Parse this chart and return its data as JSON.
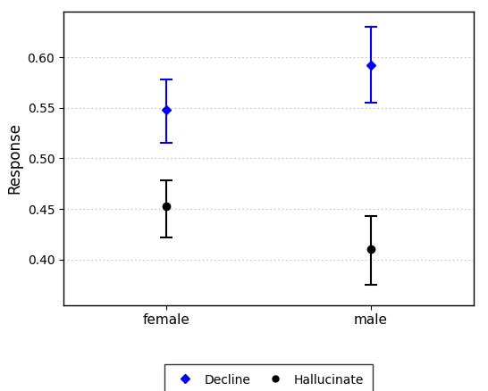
{
  "categories": [
    "female",
    "male"
  ],
  "series": [
    {
      "name": "Decline",
      "color": "#0000ee",
      "marker": "D",
      "markersize": 5,
      "y": [
        0.548,
        0.592
      ],
      "yerr_low": [
        0.033,
        0.037
      ],
      "yerr_high": [
        0.03,
        0.038
      ]
    },
    {
      "name": "Hallucinate",
      "color": "#000000",
      "marker": "o",
      "markersize": 6,
      "y": [
        0.453,
        0.41
      ],
      "yerr_low": [
        0.031,
        0.035
      ],
      "yerr_high": [
        0.025,
        0.033
      ]
    }
  ],
  "ylabel": "Response",
  "ylim": [
    0.355,
    0.645
  ],
  "yticks": [
    0.4,
    0.45,
    0.5,
    0.55,
    0.6
  ],
  "xtick_labels": [
    "female",
    "male"
  ],
  "xtick_positions": [
    1,
    2
  ],
  "xlim": [
    0.5,
    2.5
  ],
  "background_color": "#ffffff",
  "grid_color": "#aaaaaa",
  "capsize": 5,
  "elinewidth": 1.5,
  "capthick": 1.5
}
